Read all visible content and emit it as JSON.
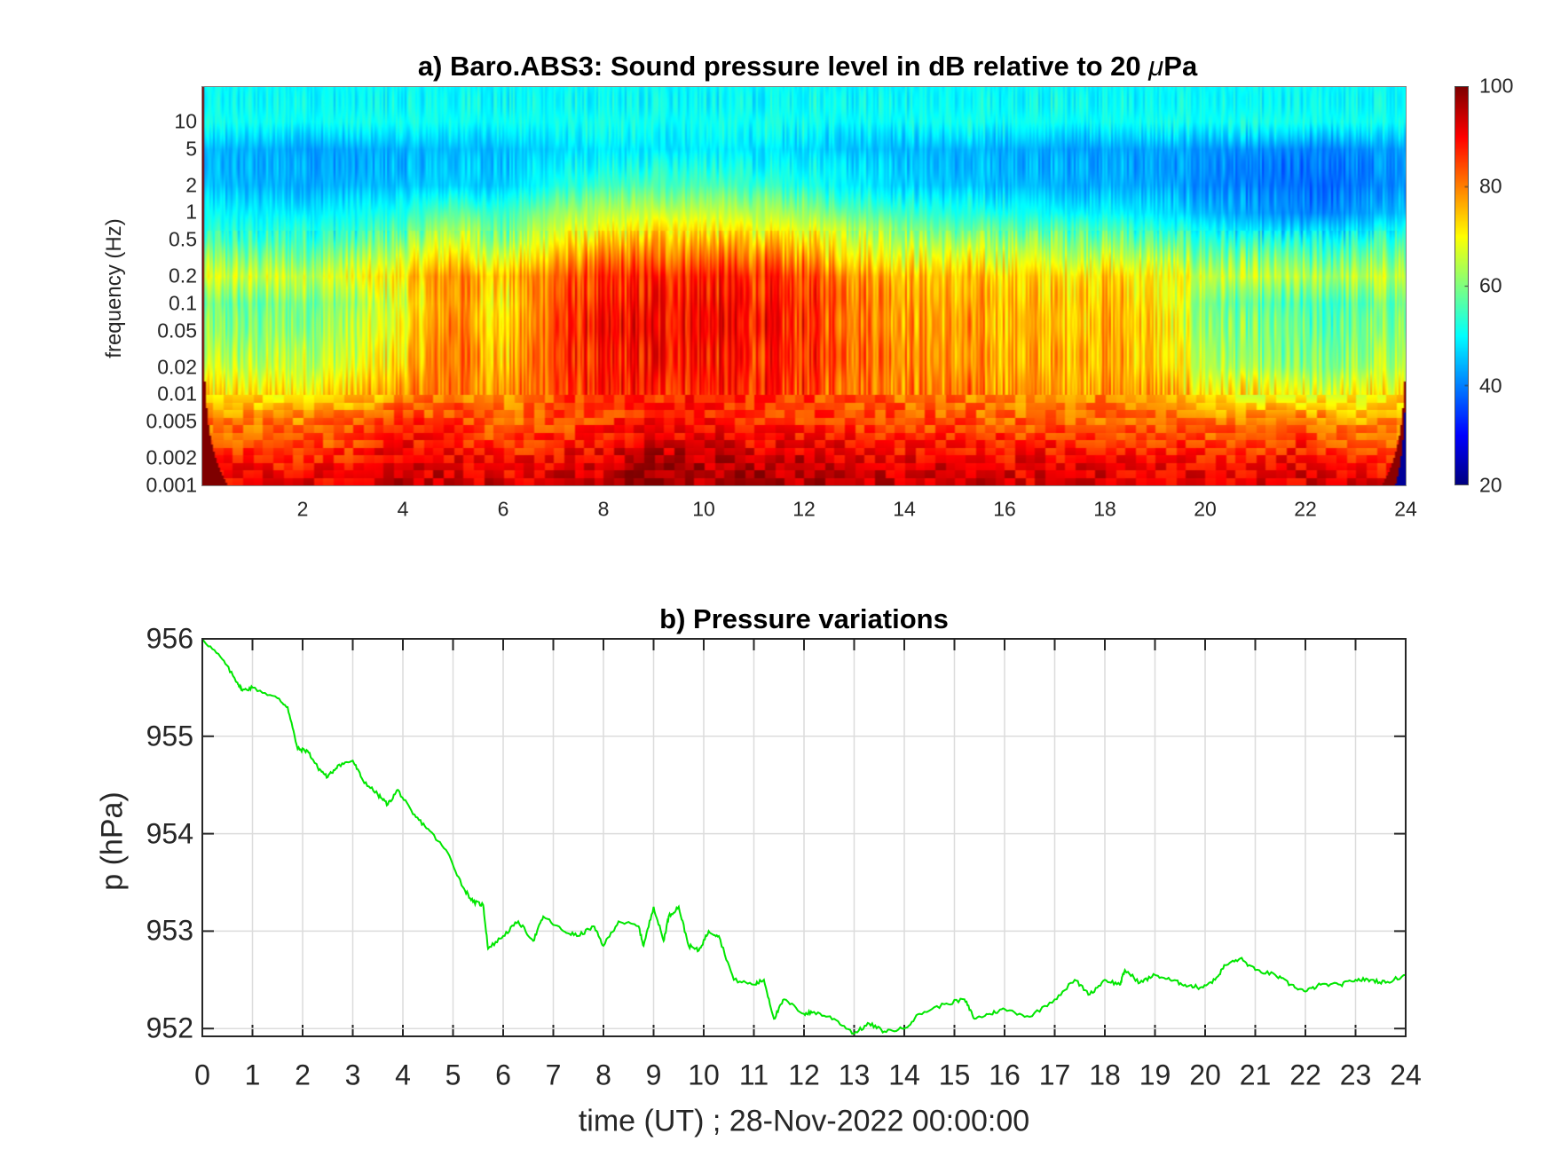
{
  "chart_data": [
    {
      "type": "heatmap",
      "title_prefix": "a) Baro.ABS3: Sound pressure level in dB relative to 20 ",
      "title_mu": "μ",
      "title_suffix": "Pa",
      "xlabel": "",
      "ylabel": "frequency (Hz)",
      "xlim": [
        0,
        24
      ],
      "ylim": [
        0.001,
        24
      ],
      "yscale": "log",
      "xticks": [
        "2",
        "4",
        "6",
        "8",
        "10",
        "12",
        "14",
        "16",
        "18",
        "20",
        "22",
        "24"
      ],
      "xtick_values": [
        2,
        4,
        6,
        8,
        10,
        12,
        14,
        16,
        18,
        20,
        22,
        24
      ],
      "yticks": [
        "10",
        "5",
        "2",
        "1",
        "0.5",
        "0.2",
        "0.1",
        "0.05",
        "0.02",
        "0.01",
        "0.005",
        "0.002",
        "0.001"
      ],
      "ytick_values": [
        10,
        5,
        2,
        1,
        0.5,
        0.2,
        0.1,
        0.05,
        0.02,
        0.01,
        0.005,
        0.002,
        0.001
      ],
      "colormap": "jet",
      "clim": [
        20,
        100
      ],
      "colorbar_ticks": [
        "100",
        "80",
        "60",
        "40",
        "20"
      ],
      "colorbar_tick_values": [
        100,
        80,
        60,
        40,
        20
      ],
      "grid_hours": [
        0,
        1,
        2,
        3,
        4,
        5,
        6,
        7,
        8,
        9,
        10,
        11,
        12,
        13,
        14,
        15,
        16,
        17,
        18,
        19,
        20,
        21,
        22,
        23,
        24
      ],
      "grid_freqs": [
        0.001,
        0.002,
        0.005,
        0.01,
        0.02,
        0.05,
        0.1,
        0.2,
        0.5,
        1,
        2,
        5,
        10,
        20
      ],
      "level_db": [
        [
          92,
          92,
          92,
          93,
          94,
          94,
          93,
          93,
          95,
          98,
          97,
          97,
          96,
          95,
          94,
          94,
          93,
          93,
          93,
          93,
          92,
          92,
          93,
          92,
          90
        ],
        [
          88,
          87,
          87,
          88,
          92,
          91,
          88,
          90,
          92,
          96,
          95,
          93,
          94,
          92,
          90,
          91,
          90,
          90,
          90,
          90,
          89,
          88,
          90,
          86,
          86
        ],
        [
          80,
          80,
          80,
          82,
          86,
          85,
          82,
          84,
          86,
          88,
          88,
          87,
          86,
          85,
          84,
          84,
          83,
          82,
          82,
          81,
          80,
          80,
          82,
          78,
          78
        ],
        [
          72,
          72,
          73,
          74,
          78,
          82,
          78,
          84,
          86,
          87,
          87,
          86,
          85,
          83,
          81,
          80,
          79,
          78,
          79,
          77,
          72,
          70,
          68,
          70,
          72
        ],
        [
          66,
          65,
          66,
          68,
          74,
          82,
          75,
          85,
          87,
          89,
          89,
          87,
          86,
          83,
          80,
          78,
          77,
          76,
          77,
          74,
          65,
          62,
          60,
          62,
          66
        ],
        [
          60,
          60,
          62,
          64,
          70,
          82,
          72,
          85,
          88,
          90,
          90,
          88,
          86,
          83,
          79,
          77,
          76,
          75,
          77,
          73,
          62,
          58,
          57,
          58,
          62
        ],
        [
          58,
          58,
          60,
          62,
          68,
          80,
          70,
          84,
          87,
          89,
          90,
          88,
          86,
          82,
          78,
          76,
          76,
          74,
          76,
          72,
          60,
          56,
          55,
          56,
          60
        ],
        [
          66,
          66,
          66,
          68,
          72,
          80,
          74,
          82,
          85,
          87,
          88,
          86,
          84,
          80,
          76,
          74,
          74,
          72,
          74,
          70,
          66,
          64,
          63,
          64,
          66
        ],
        [
          55,
          54,
          55,
          56,
          60,
          68,
          60,
          70,
          73,
          76,
          76,
          74,
          72,
          68,
          64,
          62,
          62,
          60,
          60,
          57,
          54,
          52,
          51,
          52,
          56
        ],
        [
          50,
          49,
          49,
          50,
          52,
          58,
          54,
          62,
          64,
          66,
          66,
          64,
          62,
          58,
          55,
          52,
          52,
          50,
          50,
          48,
          45,
          42,
          40,
          42,
          46
        ],
        [
          45,
          44,
          44,
          44,
          45,
          47,
          46,
          52,
          54,
          56,
          56,
          54,
          52,
          50,
          47,
          45,
          45,
          44,
          44,
          43,
          41,
          39,
          38,
          39,
          42
        ],
        [
          44,
          44,
          43,
          43,
          44,
          45,
          45,
          47,
          48,
          48,
          49,
          48,
          47,
          46,
          45,
          44,
          44,
          43,
          43,
          43,
          42,
          41,
          40,
          41,
          43
        ],
        [
          51,
          51,
          51,
          51,
          51,
          51,
          51,
          51,
          51,
          51,
          51,
          51,
          51,
          51,
          51,
          51,
          51,
          51,
          51,
          51,
          51,
          51,
          51,
          51,
          51
        ],
        [
          50,
          50,
          50,
          50,
          50,
          50,
          50,
          50,
          50,
          50,
          50,
          50,
          50,
          50,
          50,
          50,
          50,
          50,
          50,
          50,
          50,
          50,
          50,
          50,
          50
        ]
      ]
    },
    {
      "type": "line",
      "title": "b) Pressure variations",
      "xlabel": "time (UT) ; 28-Nov-2022 00:00:00",
      "ylabel": "p (hPa)",
      "xlim": [
        0,
        24
      ],
      "ylim": [
        951.92,
        956
      ],
      "grid": true,
      "line_color": "#00e600",
      "xticks": [
        "0",
        "1",
        "2",
        "3",
        "4",
        "5",
        "6",
        "7",
        "8",
        "9",
        "10",
        "11",
        "12",
        "13",
        "14",
        "15",
        "16",
        "17",
        "18",
        "19",
        "20",
        "21",
        "22",
        "23",
        "24"
      ],
      "xtick_values": [
        0,
        1,
        2,
        3,
        4,
        5,
        6,
        7,
        8,
        9,
        10,
        11,
        12,
        13,
        14,
        15,
        16,
        17,
        18,
        19,
        20,
        21,
        22,
        23,
        24
      ],
      "yticks": [
        "956",
        "955",
        "954",
        "953",
        "952"
      ],
      "ytick_values": [
        956,
        955,
        954,
        953,
        952
      ],
      "series": [
        {
          "name": "pressure",
          "x": [
            0,
            0.4,
            0.7,
            0.8,
            1.0,
            1.5,
            1.7,
            1.9,
            2.1,
            2.3,
            2.5,
            2.7,
            3.0,
            3.2,
            3.5,
            3.7,
            3.9,
            4.2,
            4.5,
            4.9,
            5.2,
            5.4,
            5.6,
            5.7,
            6.0,
            6.3,
            6.6,
            6.8,
            7.2,
            7.5,
            7.8,
            8.0,
            8.3,
            8.7,
            8.8,
            9.0,
            9.2,
            9.3,
            9.5,
            9.7,
            9.9,
            10.1,
            10.3,
            10.6,
            11.0,
            11.2,
            11.4,
            11.6,
            12.0,
            12.2,
            12.6,
            13.0,
            13.3,
            13.6,
            14.0,
            14.3,
            14.8,
            15.2,
            15.4,
            15.7,
            16.0,
            16.5,
            17.0,
            17.4,
            17.7,
            18.0,
            18.3,
            18.4,
            18.7,
            19.0,
            19.3,
            19.6,
            19.9,
            20.2,
            20.4,
            20.7,
            21.0,
            21.4,
            21.7,
            22.0,
            22.3,
            22.7,
            23.0,
            23.3,
            23.6,
            24.0
          ],
          "y": [
            956.0,
            955.79,
            955.55,
            955.47,
            955.5,
            955.39,
            955.3,
            954.87,
            954.85,
            954.68,
            954.58,
            954.7,
            954.75,
            954.55,
            954.4,
            954.3,
            954.45,
            954.2,
            954.05,
            953.8,
            953.45,
            953.3,
            953.27,
            952.82,
            952.95,
            953.1,
            952.9,
            953.15,
            953.0,
            952.95,
            953.05,
            952.85,
            953.1,
            953.05,
            952.85,
            953.25,
            952.9,
            953.15,
            953.25,
            952.85,
            952.8,
            953.0,
            952.95,
            952.5,
            952.45,
            952.5,
            952.1,
            952.3,
            952.15,
            952.17,
            952.1,
            951.95,
            952.05,
            951.97,
            952.0,
            952.15,
            952.25,
            952.3,
            952.1,
            952.15,
            952.2,
            952.12,
            952.3,
            952.5,
            952.35,
            952.5,
            952.45,
            952.6,
            952.47,
            952.55,
            952.5,
            952.45,
            952.42,
            952.5,
            952.65,
            952.72,
            952.6,
            952.55,
            952.45,
            952.38,
            952.45,
            952.45,
            952.5,
            952.5,
            952.47,
            952.55
          ]
        }
      ]
    }
  ]
}
